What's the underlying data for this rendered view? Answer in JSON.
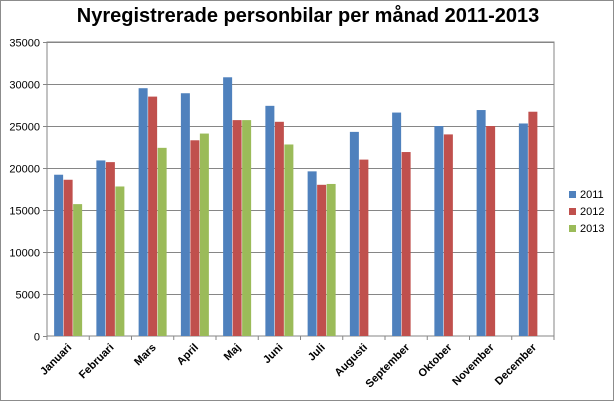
{
  "chart_data": {
    "type": "bar",
    "title": "Nyregistrerade personbilar per månad 2011-2013",
    "xlabel": "",
    "ylabel": "",
    "ylim": [
      0,
      35000
    ],
    "yticks": [
      0,
      5000,
      10000,
      15000,
      20000,
      25000,
      30000,
      35000
    ],
    "grid": true,
    "legend_position": "right",
    "categories": [
      "Januari",
      "Februari",
      "Mars",
      "April",
      "Maj",
      "Juni",
      "Juli",
      "Augusti",
      "September",
      "Oktober",
      "November",
      "December"
    ],
    "series": [
      {
        "name": "2011",
        "color": "#4f81bd",
        "values": [
          19200,
          20900,
          29500,
          28900,
          30800,
          27400,
          19600,
          24300,
          26600,
          25000,
          26900,
          25300
        ]
      },
      {
        "name": "2012",
        "color": "#c0504d",
        "values": [
          18600,
          20700,
          28500,
          23300,
          25700,
          25500,
          18000,
          21000,
          21900,
          24000,
          25000,
          26700
        ]
      },
      {
        "name": "2013",
        "color": "#9bbb59",
        "values": [
          15700,
          17800,
          22400,
          24100,
          25700,
          22800,
          18100,
          null,
          null,
          null,
          null,
          null
        ]
      }
    ]
  }
}
